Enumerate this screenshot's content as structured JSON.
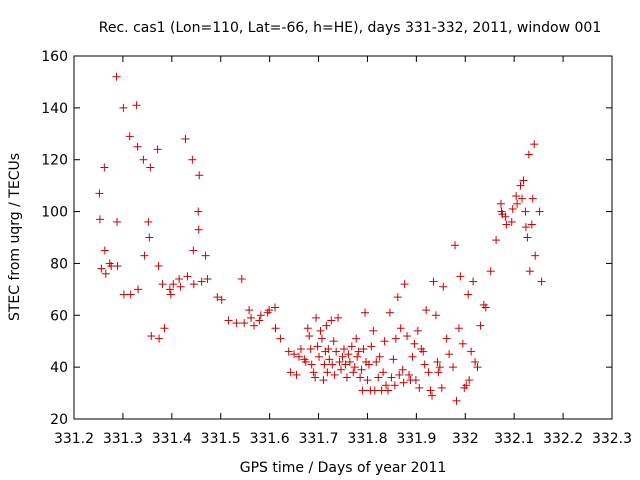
{
  "chart_data": {
    "type": "scatter",
    "title": "Rec. cas1 (Lon=110, Lat=-66, h=HE), days 331-332, 2011, window 001",
    "xlabel": "GPS time / Days of year 2011",
    "ylabel": "STEC from uqrg / TECUs",
    "xlim": [
      331.2,
      332.3
    ],
    "ylim": [
      20,
      160
    ],
    "x_ticks": [
      "331.2",
      "331.3",
      "331.4",
      "331.5",
      "331.6",
      "331.7",
      "331.8",
      "331.9",
      "332",
      "332.1",
      "332.2",
      "332.3"
    ],
    "y_ticks": [
      "20",
      "40",
      "60",
      "80",
      "100",
      "120",
      "140",
      "160"
    ],
    "grid": false,
    "legend": "none",
    "marker": "plus",
    "color": "#cc0000",
    "series": [
      {
        "points": [
          [
            331.252,
            107
          ],
          [
            331.253,
            97
          ],
          [
            331.256,
            78
          ],
          [
            331.262,
            117
          ],
          [
            331.263,
            85
          ],
          [
            331.265,
            76
          ],
          [
            331.273,
            80
          ],
          [
            331.276,
            79
          ],
          [
            331.287,
            152
          ],
          [
            331.288,
            96
          ],
          [
            331.289,
            79
          ],
          [
            331.301,
            140
          ],
          [
            331.302,
            68
          ],
          [
            331.314,
            129
          ],
          [
            331.316,
            68
          ],
          [
            331.328,
            141
          ],
          [
            331.331,
            70
          ],
          [
            331.33,
            125
          ],
          [
            331.342,
            120
          ],
          [
            331.344,
            83
          ],
          [
            331.352,
            96
          ],
          [
            331.354,
            90
          ],
          [
            331.356,
            117
          ],
          [
            331.358,
            52
          ],
          [
            331.371,
            124
          ],
          [
            331.373,
            79
          ],
          [
            331.374,
            51
          ],
          [
            331.381,
            72
          ],
          [
            331.385,
            55
          ],
          [
            331.396,
            70
          ],
          [
            331.398,
            68
          ],
          [
            331.403,
            72
          ],
          [
            331.415,
            74
          ],
          [
            331.418,
            71
          ],
          [
            331.428,
            128
          ],
          [
            331.432,
            75
          ],
          [
            331.442,
            120
          ],
          [
            331.444,
            85
          ],
          [
            331.445,
            72
          ],
          [
            331.454,
            100
          ],
          [
            331.455,
            93
          ],
          [
            331.456,
            114
          ],
          [
            331.461,
            73
          ],
          [
            331.469,
            83
          ],
          [
            331.473,
            74
          ],
          [
            331.493,
            67
          ],
          [
            331.502,
            66
          ],
          [
            331.516,
            58
          ],
          [
            331.532,
            57
          ],
          [
            331.543,
            74
          ],
          [
            331.548,
            57
          ],
          [
            331.558,
            62
          ],
          [
            331.562,
            59
          ],
          [
            331.568,
            56
          ],
          [
            331.579,
            58
          ],
          [
            331.582,
            60
          ],
          [
            331.596,
            61
          ],
          [
            331.599,
            62
          ],
          [
            331.611,
            63
          ],
          [
            331.612,
            55
          ],
          [
            331.622,
            51
          ],
          [
            331.639,
            46
          ],
          [
            331.643,
            38
          ],
          [
            331.65,
            45
          ],
          [
            331.655,
            37
          ],
          [
            331.66,
            44
          ],
          [
            331.664,
            47
          ],
          [
            331.671,
            43
          ],
          [
            331.674,
            42
          ],
          [
            331.678,
            55
          ],
          [
            331.681,
            52
          ],
          [
            331.684,
            47
          ],
          [
            331.686,
            41
          ],
          [
            331.69,
            38
          ],
          [
            331.693,
            36
          ],
          [
            331.695,
            59
          ],
          [
            331.698,
            48
          ],
          [
            331.701,
            44
          ],
          [
            331.704,
            54
          ],
          [
            331.707,
            51
          ],
          [
            331.71,
            35
          ],
          [
            331.712,
            41
          ],
          [
            331.714,
            46
          ],
          [
            331.716,
            56
          ],
          [
            331.718,
            38
          ],
          [
            331.72,
            47
          ],
          [
            331.722,
            43
          ],
          [
            331.726,
            58
          ],
          [
            331.728,
            41
          ],
          [
            331.731,
            50
          ],
          [
            331.733,
            37
          ],
          [
            331.736,
            46
          ],
          [
            331.74,
            59
          ],
          [
            331.743,
            42
          ],
          [
            331.746,
            39
          ],
          [
            331.749,
            44
          ],
          [
            331.752,
            47
          ],
          [
            331.755,
            41
          ],
          [
            331.758,
            36
          ],
          [
            331.761,
            45
          ],
          [
            331.764,
            42
          ],
          [
            331.768,
            48
          ],
          [
            331.771,
            38
          ],
          [
            331.774,
            40
          ],
          [
            331.777,
            51
          ],
          [
            331.779,
            44
          ],
          [
            331.782,
            46
          ],
          [
            331.785,
            36
          ],
          [
            331.788,
            39
          ],
          [
            331.79,
            31
          ],
          [
            331.792,
            47
          ],
          [
            331.795,
            61
          ],
          [
            331.797,
            42
          ],
          [
            331.8,
            35
          ],
          [
            331.803,
            41
          ],
          [
            331.806,
            31
          ],
          [
            331.808,
            48
          ],
          [
            331.812,
            54
          ],
          [
            331.815,
            31
          ],
          [
            331.818,
            42
          ],
          [
            331.822,
            36
          ],
          [
            331.825,
            44
          ],
          [
            331.829,
            31
          ],
          [
            331.832,
            38
          ],
          [
            331.835,
            50
          ],
          [
            331.838,
            33
          ],
          [
            331.842,
            31
          ],
          [
            331.846,
            61
          ],
          [
            331.849,
            36
          ],
          [
            331.853,
            43
          ],
          [
            331.856,
            33
          ],
          [
            331.858,
            51
          ],
          [
            331.862,
            67
          ],
          [
            331.865,
            37
          ],
          [
            331.868,
            55
          ],
          [
            331.872,
            39
          ],
          [
            331.874,
            34
          ],
          [
            331.876,
            72
          ],
          [
            331.881,
            52
          ],
          [
            331.885,
            37
          ],
          [
            331.888,
            35
          ],
          [
            331.892,
            44
          ],
          [
            331.896,
            49
          ],
          [
            331.899,
            35
          ],
          [
            331.903,
            54
          ],
          [
            331.906,
            32
          ],
          [
            331.91,
            47
          ],
          [
            331.914,
            46
          ],
          [
            331.917,
            41
          ],
          [
            331.92,
            62
          ],
          [
            331.925,
            38
          ],
          [
            331.929,
            31
          ],
          [
            331.932,
            29
          ],
          [
            331.935,
            73
          ],
          [
            331.94,
            60
          ],
          [
            331.943,
            42
          ],
          [
            331.945,
            38
          ],
          [
            331.948,
            40
          ],
          [
            331.952,
            32
          ],
          [
            331.955,
            71
          ],
          [
            331.962,
            51
          ],
          [
            331.967,
            45
          ],
          [
            331.975,
            40
          ],
          [
            331.979,
            87
          ],
          [
            331.982,
            27
          ],
          [
            331.987,
            55
          ],
          [
            331.99,
            75
          ],
          [
            331.995,
            49
          ],
          [
            331.998,
            32
          ],
          [
            332.002,
            33
          ],
          [
            332.006,
            68
          ],
          [
            332.008,
            35
          ],
          [
            332.012,
            46
          ],
          [
            332.016,
            73
          ],
          [
            332.02,
            42
          ],
          [
            332.025,
            40
          ],
          [
            332.031,
            56
          ],
          [
            332.038,
            64
          ],
          [
            332.042,
            63
          ],
          [
            332.052,
            77
          ],
          [
            332.063,
            89
          ],
          [
            332.073,
            103
          ],
          [
            332.074,
            100
          ],
          [
            332.076,
            99
          ],
          [
            332.082,
            98
          ],
          [
            332.084,
            95
          ],
          [
            332.095,
            96
          ],
          [
            332.097,
            101
          ],
          [
            332.104,
            106
          ],
          [
            332.106,
            103
          ],
          [
            332.113,
            110
          ],
          [
            332.116,
            105
          ],
          [
            332.119,
            112
          ],
          [
            332.123,
            100
          ],
          [
            332.124,
            94
          ],
          [
            332.127,
            90
          ],
          [
            332.13,
            122
          ],
          [
            332.132,
            77
          ],
          [
            332.136,
            95
          ],
          [
            332.138,
            105
          ],
          [
            332.141,
            126
          ],
          [
            332.143,
            83
          ],
          [
            332.152,
            100
          ],
          [
            332.156,
            73
          ]
        ]
      }
    ]
  }
}
